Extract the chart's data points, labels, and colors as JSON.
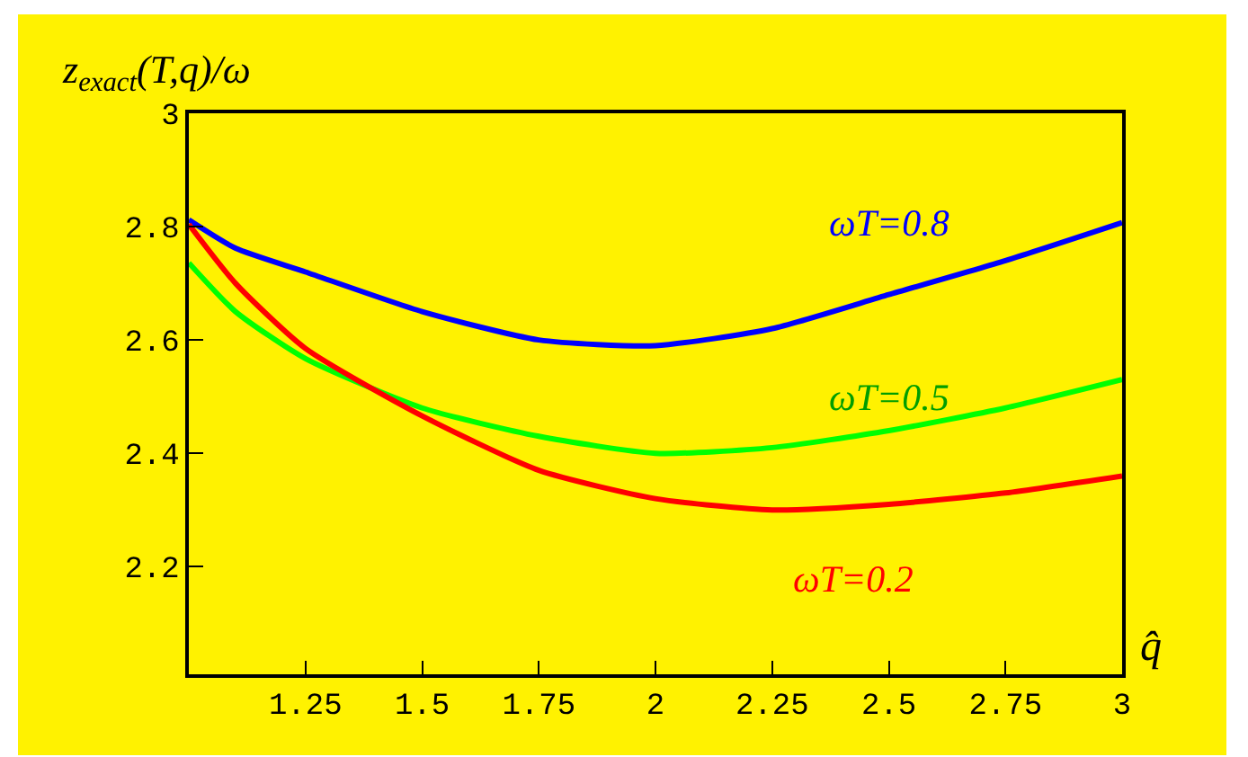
{
  "chart_data": {
    "type": "line",
    "ylabel": "z$_{exact}$(T,q)/ω",
    "xlabel": "q̂",
    "x": [
      1,
      1.1,
      1.25,
      1.5,
      1.75,
      2,
      2.25,
      2.5,
      2.75,
      3
    ],
    "series": [
      {
        "name": "ωT=0.8",
        "color": "#0000ff",
        "values": [
          2.812,
          2.762,
          2.72,
          2.65,
          2.6,
          2.59,
          2.62,
          2.68,
          2.74,
          2.807
        ]
      },
      {
        "name": "ωT=0.5",
        "color": "#00ff00",
        "values": [
          2.736,
          2.65,
          2.567,
          2.48,
          2.43,
          2.4,
          2.41,
          2.44,
          2.48,
          2.53
        ]
      },
      {
        "name": "ωT=0.2",
        "color": "#ff0000",
        "values": [
          2.804,
          2.7,
          2.585,
          2.466,
          2.37,
          2.32,
          2.3,
          2.31,
          2.33,
          2.36
        ]
      }
    ],
    "xlim": [
      1,
      3
    ],
    "xticks": [
      1.25,
      1.5,
      1.75,
      2,
      2.25,
      2.5,
      2.75,
      3
    ],
    "ylim": [
      2.01,
      3
    ],
    "yticks": [
      2.2,
      2.4,
      2.6,
      2.8,
      3
    ],
    "grid": false,
    "legend": false,
    "marker": "none",
    "line_style": "solid"
  }
}
